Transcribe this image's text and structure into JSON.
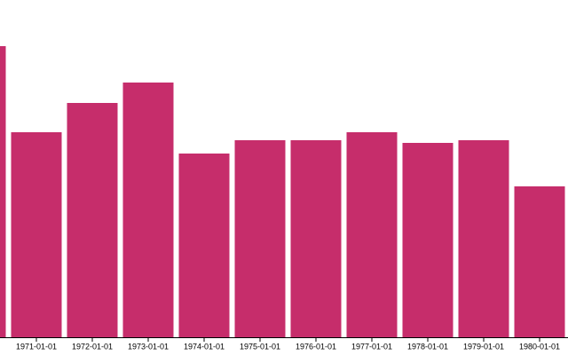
{
  "chart_data": {
    "type": "bar",
    "categories": [
      null,
      "1971-01-01",
      "1972-01-01",
      "1973-01-01",
      "1974-01-01",
      "1975-01-01",
      "1976-01-01",
      "1977-01-01",
      "1978-01-01",
      "1979-01-01",
      "1980-01-01"
    ],
    "values": [
      328,
      231,
      264,
      287,
      207,
      222,
      222,
      231,
      219,
      222,
      170
    ],
    "color": "#c62d6b",
    "ylim": [
      0,
      380
    ]
  }
}
